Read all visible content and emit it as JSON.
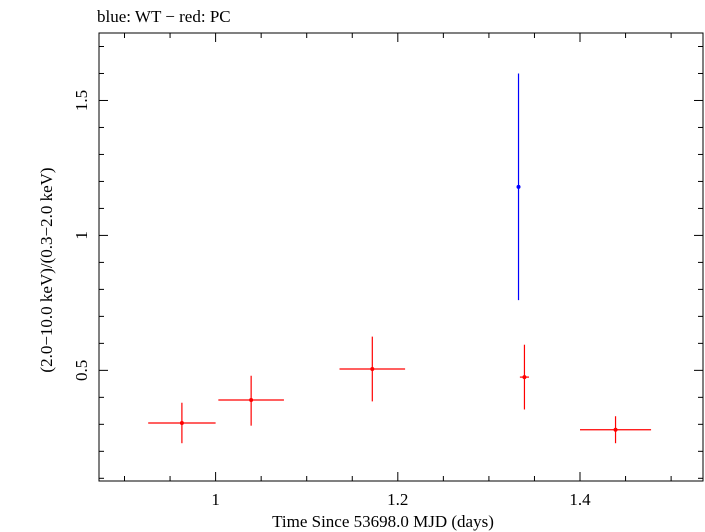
{
  "chart_data": {
    "type": "scatter",
    "title": "blue: WT − red: PC",
    "xlabel": "Time Since 53698.0 MJD (days)",
    "ylabel": "(2.0−10.0 keV)/(0.3−2.0 keV)",
    "xlim": [
      0.872,
      1.535
    ],
    "ylim": [
      0.09,
      1.75
    ],
    "x_ticks": [
      {
        "value": 1.0,
        "label": "1"
      },
      {
        "value": 1.2,
        "label": "1.2"
      },
      {
        "value": 1.4,
        "label": "1.4"
      }
    ],
    "y_ticks": [
      {
        "value": 0.5,
        "label": "0.5"
      },
      {
        "value": 1.0,
        "label": "1"
      },
      {
        "value": 1.5,
        "label": "1.5"
      }
    ],
    "series": [
      {
        "color": "#0000ff",
        "points": [
          {
            "x": 1.3325,
            "xerr": 0.0,
            "y": 1.18,
            "yerr_low": 0.42,
            "yerr_high": 0.42
          }
        ]
      },
      {
        "color": "#ff0000",
        "points": [
          {
            "x": 0.963,
            "xerr": 0.037,
            "y": 0.305,
            "yerr_low": 0.075,
            "yerr_high": 0.075
          },
          {
            "x": 1.039,
            "xerr": 0.036,
            "y": 0.39,
            "yerr_low": 0.095,
            "yerr_high": 0.09
          },
          {
            "x": 1.172,
            "xerr": 0.036,
            "y": 0.505,
            "yerr_low": 0.12,
            "yerr_high": 0.12
          },
          {
            "x": 1.339,
            "xerr": 0.005,
            "y": 0.475,
            "yerr_low": 0.12,
            "yerr_high": 0.12
          },
          {
            "x": 1.439,
            "xerr": 0.039,
            "y": 0.28,
            "yerr_low": 0.05,
            "yerr_high": 0.05
          }
        ]
      }
    ]
  }
}
